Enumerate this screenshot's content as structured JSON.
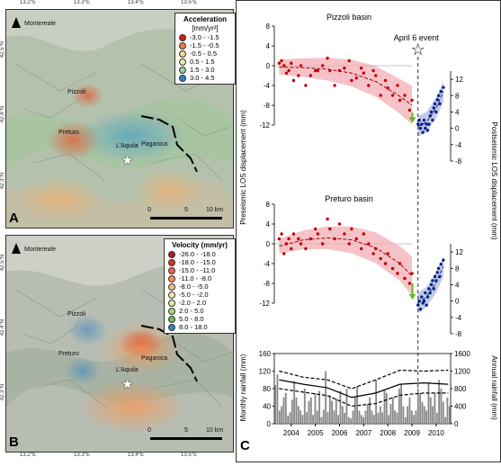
{
  "panels": {
    "a": "A",
    "b": "B",
    "c": "C"
  },
  "map_ticks": {
    "lon": [
      "13.2°E",
      "13.3°E",
      "13.4°E",
      "13.5°E"
    ],
    "lat_a": [
      "42.5°N",
      "42.4°N",
      "42.3°N"
    ],
    "lat_b": [
      "42.5°N",
      "42.4°N",
      "42.3°N"
    ]
  },
  "legend_a": {
    "title": "Acceleration",
    "subtitle": "[mm/yr²]",
    "items": [
      {
        "label": "-3.0 - -1.5",
        "color": "#d7191c"
      },
      {
        "label": "-1.5 - -0.5",
        "color": "#f07c4a"
      },
      {
        "label": "-0.5 - 0.5",
        "color": "#fdd58b"
      },
      {
        "label": "0.5 - 1.5",
        "color": "#e6f1a8"
      },
      {
        "label": "1.5 - 3.0",
        "color": "#97cfa4"
      },
      {
        "label": "3.0 - 4.5",
        "color": "#2b83ba"
      }
    ]
  },
  "legend_b": {
    "title": "Velocity (mm/yr)",
    "items": [
      {
        "label": "-26.0 - -18.0",
        "color": "#b2182b"
      },
      {
        "label": "-18.0 - -15.0",
        "color": "#d7301f"
      },
      {
        "label": "-15.0 - -11.0",
        "color": "#ef6548"
      },
      {
        "label": "-11.0 - -8.0",
        "color": "#fc8d59"
      },
      {
        "label": "-8.0 - -5.0",
        "color": "#fdbb84"
      },
      {
        "label": "-5.0 - -2.0",
        "color": "#fee8a8"
      },
      {
        "label": "-2.0 - 2.0",
        "color": "#d9f0a3"
      },
      {
        "label": "2.0 - 5.0",
        "color": "#a6d96a"
      },
      {
        "label": "5.0 - 8.0",
        "color": "#66bd63"
      },
      {
        "label": "8.0 - 18.0",
        "color": "#3182bd"
      }
    ]
  },
  "map_labels": {
    "montereale": "Montereale",
    "pizzoli": "Pizzoli",
    "preturo": "Preturo",
    "laquila": "L'Aquila",
    "paganica": "Paganica"
  },
  "scalebar": {
    "zero": "0",
    "five": "5",
    "ten": "10 km"
  },
  "chart_labels": {
    "pizzoli_title": "Pizzoli basin",
    "preturo_title": "Preturo basin",
    "event": "April 6 event",
    "pre_ylabel": "Preseismic LOS displacement (mm)",
    "post_ylabel": "Postseismic LOS displacement (mm)",
    "monthly": "Monthly rainfall (mm)",
    "annual": "Annual rainfall (mm)"
  },
  "chart_data": [
    {
      "type": "scatter",
      "title": "Pizzoli basin",
      "ylabel": "Preseismic LOS displacement (mm)",
      "y2label": "Postseismic LOS displacement (mm)",
      "pre_yticks": [
        "8",
        "4",
        "0",
        "-4",
        "-8",
        "-12"
      ],
      "post_yticks": [
        "12",
        "8",
        "4",
        "0",
        "-4",
        "-8"
      ],
      "pre_ylim": [
        -12,
        8
      ],
      "post_ylim": [
        -8,
        14
      ],
      "pre_series": {
        "color": "#c00000",
        "x": [
          2003.5,
          2003.6,
          2003.7,
          2003.8,
          2003.9,
          2004.0,
          2004.1,
          2004.3,
          2004.4,
          2004.6,
          2004.8,
          2005.0,
          2005.1,
          2005.3,
          2005.5,
          2005.6,
          2005.8,
          2006.0,
          2006.2,
          2006.4,
          2006.5,
          2006.7,
          2006.9,
          2007.0,
          2007.2,
          2007.4,
          2007.5,
          2007.7,
          2007.9,
          2008.0,
          2008.2,
          2008.4,
          2008.5,
          2008.7,
          2008.9,
          2009.0
        ],
        "y": [
          0.5,
          1,
          0,
          -1.5,
          -1,
          0.5,
          -3,
          -2,
          0,
          -4,
          -2,
          -1,
          -1,
          0,
          1.5,
          -1,
          -4,
          -1,
          -0.5,
          1,
          -3,
          -2.5,
          -0.5,
          -1.5,
          -4,
          -1,
          -2,
          -6,
          -3,
          -4.5,
          -6,
          -4,
          -7,
          -6,
          -9,
          -7
        ]
      },
      "pre_trend": {
        "x": [
          2003.5,
          2004.5,
          2005.5,
          2006.5,
          2007.5,
          2008.5,
          2009.0
        ],
        "y": [
          -0.3,
          -0.4,
          -0.7,
          -1.5,
          -3.2,
          -6.2,
          -8
        ]
      },
      "post_series": {
        "color": "#00208b",
        "x": [
          2009.25,
          2009.3,
          2009.35,
          2009.4,
          2009.45,
          2009.5,
          2009.55,
          2009.6,
          2009.65,
          2009.7,
          2009.75,
          2009.8,
          2009.85,
          2009.9,
          2009.95,
          2010.0,
          2010.05,
          2010.1,
          2010.15,
          2010.2,
          2010.3
        ],
        "y": [
          1,
          2,
          0,
          1,
          -1,
          2,
          0,
          1,
          -0.5,
          1,
          3,
          4,
          2,
          5,
          6,
          4,
          7,
          8,
          6,
          9,
          10
        ]
      },
      "post_trend": {
        "x": [
          2009.25,
          2009.6,
          2010.0,
          2010.3
        ],
        "y": [
          0.5,
          1.5,
          5,
          9
        ]
      },
      "step_mm": -8
    },
    {
      "type": "scatter",
      "title": "Preturo basin",
      "pre_yticks": [
        "8",
        "4",
        "0",
        "-4",
        "-8",
        "-12"
      ],
      "post_yticks": [
        "12",
        "8",
        "4",
        "0",
        "-4",
        "-8"
      ],
      "pre_ylim": [
        -12,
        8
      ],
      "post_ylim": [
        -8,
        14
      ],
      "pre_series": {
        "color": "#c00000",
        "x": [
          2003.5,
          2003.6,
          2003.7,
          2003.8,
          2003.9,
          2004.0,
          2004.1,
          2004.3,
          2004.4,
          2004.6,
          2004.8,
          2005.0,
          2005.1,
          2005.3,
          2005.5,
          2005.6,
          2005.8,
          2006.0,
          2006.2,
          2006.4,
          2006.5,
          2006.7,
          2006.9,
          2007.0,
          2007.2,
          2007.4,
          2007.5,
          2007.7,
          2007.9,
          2008.0,
          2008.2,
          2008.4,
          2008.5,
          2008.7,
          2008.9,
          2009.0
        ],
        "y": [
          1,
          2,
          -2,
          0,
          1,
          -1,
          2,
          1,
          0,
          -1,
          1,
          3,
          2,
          0,
          5,
          3,
          1,
          4,
          2,
          0,
          3,
          1,
          -1,
          2,
          0,
          -2,
          -1,
          -3,
          -4,
          -2,
          -5,
          -6,
          -4,
          -7,
          -8,
          -6
        ]
      },
      "pre_trend": {
        "x": [
          2003.5,
          2004.5,
          2005.5,
          2006.5,
          2007.5,
          2008.5,
          2009.0
        ],
        "y": [
          -0.5,
          0.8,
          1.2,
          0.8,
          -0.8,
          -4,
          -6.5
        ]
      },
      "post_series": {
        "color": "#00208b",
        "x": [
          2009.25,
          2009.3,
          2009.35,
          2009.4,
          2009.45,
          2009.5,
          2009.55,
          2009.6,
          2009.65,
          2009.7,
          2009.75,
          2009.8,
          2009.85,
          2009.9,
          2009.95,
          2010.0,
          2010.05,
          2010.1,
          2010.15,
          2010.2,
          2010.3
        ],
        "y": [
          -1,
          0,
          -2,
          1,
          -0.5,
          0,
          2,
          -1,
          1,
          3,
          2,
          4,
          5,
          3,
          6,
          5,
          7,
          8,
          6,
          9,
          10
        ]
      },
      "post_trend": {
        "x": [
          2009.25,
          2009.6,
          2010.0,
          2010.3
        ],
        "y": [
          -0.5,
          1,
          4.5,
          8.5
        ]
      },
      "step_mm": -8
    },
    {
      "type": "bar",
      "ylabel": "Monthly rainfall (mm)",
      "y2label": "Annual rainfall (mm)",
      "ylim": [
        0,
        160
      ],
      "y2lim": [
        0,
        1600
      ],
      "yticks": [
        "160",
        "120",
        "80",
        "40",
        "0"
      ],
      "y2ticks": [
        "1600",
        "1200",
        "800",
        "400",
        "0"
      ],
      "xticks": [
        "2004",
        "2005",
        "2006",
        "2007",
        "2008",
        "2009",
        "2010"
      ],
      "monthly": [
        88,
        112,
        30,
        40,
        60,
        70,
        18,
        26,
        55,
        97,
        60,
        40,
        30,
        20,
        80,
        26,
        52,
        60,
        20,
        70,
        30,
        75,
        15,
        32,
        120,
        27,
        65,
        52,
        30,
        58,
        20,
        75,
        40,
        25,
        80,
        15,
        12,
        30,
        60,
        85,
        30,
        20,
        15,
        30,
        45,
        60,
        30,
        20,
        100,
        25,
        40,
        26,
        76,
        70,
        20,
        45,
        60,
        30,
        25,
        80,
        90,
        40,
        15,
        40,
        60,
        30,
        20,
        30,
        80,
        70,
        50,
        40,
        30,
        95,
        60,
        40,
        70,
        25,
        100,
        80,
        50,
        15,
        60,
        40
      ],
      "annual": {
        "x": [
          2003.5,
          2004.5,
          2005.5,
          2006.5,
          2007.5,
          2008.5,
          2009.5,
          2010.5
        ],
        "y": [
          1000,
          900,
          820,
          600,
          700,
          900,
          930,
          900
        ]
      },
      "band_upper": {
        "x": [
          2003.5,
          2004.5,
          2005.5,
          2006.5,
          2007.5,
          2008.5,
          2009.5,
          2010.5
        ],
        "y": [
          1200,
          1060,
          1000,
          800,
          1000,
          1220,
          1200,
          1220
        ]
      },
      "band_lower": {
        "x": [
          2003.5,
          2004.5,
          2005.5,
          2006.5,
          2007.5,
          2008.5,
          2009.5,
          2010.5
        ],
        "y": [
          800,
          720,
          640,
          400,
          460,
          650,
          700,
          700
        ]
      }
    }
  ]
}
